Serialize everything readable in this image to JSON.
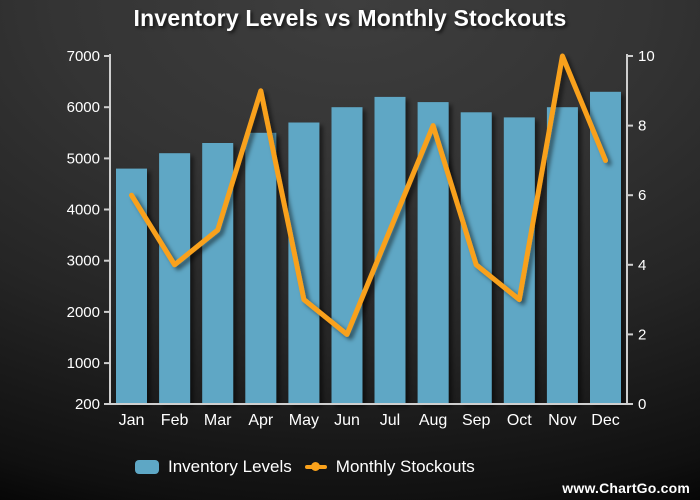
{
  "title": "Inventory Levels vs Monthly Stockouts",
  "watermark": "www.ChartGo.com",
  "colors": {
    "bar": "#5EA7C5",
    "line": "#F9A11B",
    "axis": "#CFCFCF",
    "text": "#FFFFFF",
    "background_center": "#3E3E3E",
    "background_edge": "#000000"
  },
  "legend": {
    "position": "bottom",
    "items": [
      {
        "label": "Inventory Levels",
        "symbol": "bar-swatch"
      },
      {
        "label": "Monthly Stockouts",
        "symbol": "line-dot"
      }
    ]
  },
  "chart_data": {
    "type": "combo",
    "title": "Inventory Levels vs Monthly Stockouts",
    "categories": [
      "Jan",
      "Feb",
      "Mar",
      "Apr",
      "May",
      "Jun",
      "Jul",
      "Aug",
      "Sep",
      "Oct",
      "Nov",
      "Dec"
    ],
    "series": [
      {
        "name": "Inventory Levels",
        "type": "bar",
        "axis": "left",
        "color": "#5EA7C5",
        "values": [
          4800,
          5100,
          5300,
          5500,
          5700,
          6000,
          6200,
          6100,
          5900,
          5800,
          6000,
          6300
        ]
      },
      {
        "name": "Monthly Stockouts",
        "type": "line",
        "axis": "right",
        "color": "#F9A11B",
        "values": [
          6,
          4,
          5,
          9,
          3,
          2,
          5,
          8,
          4,
          3,
          10,
          7
        ]
      }
    ],
    "left_axis": {
      "min": 200,
      "max": 7000,
      "ticks": [
        200,
        1000,
        2000,
        3000,
        4000,
        5000,
        6000,
        7000
      ]
    },
    "right_axis": {
      "min": 0,
      "max": 10,
      "ticks": [
        0,
        2,
        4,
        6,
        8,
        10
      ]
    },
    "grid": false,
    "legend_position": "bottom"
  }
}
